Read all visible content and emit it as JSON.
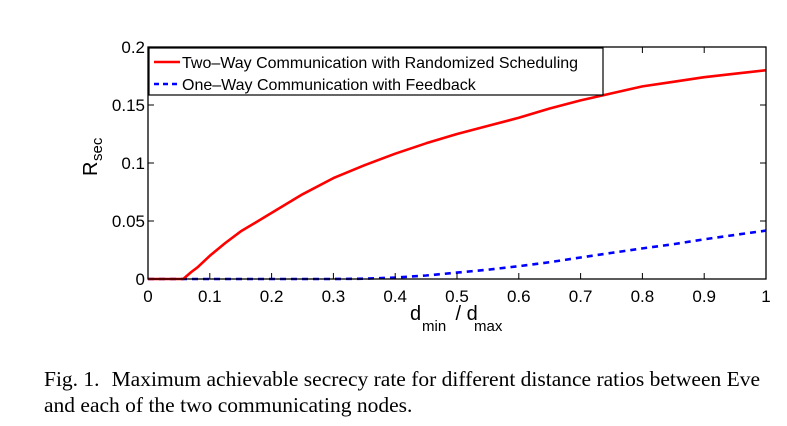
{
  "chart_data": {
    "type": "line",
    "title": "",
    "xlabel": {
      "main": "d",
      "sub1": "min",
      "sep": " / d",
      "sub2": "max"
    },
    "ylabel": {
      "main": "R",
      "sub": "sec"
    },
    "xlim": [
      0,
      1
    ],
    "ylim": [
      0,
      0.2
    ],
    "xticks": [
      0,
      0.1,
      0.2,
      0.3,
      0.4,
      0.5,
      0.6,
      0.7,
      0.8,
      0.9,
      1
    ],
    "xtick_labels": [
      "0",
      "0.1",
      "0.2",
      "0.3",
      "0.4",
      "0.5",
      "0.6",
      "0.7",
      "0.8",
      "0.9",
      "1"
    ],
    "yticks": [
      0,
      0.05,
      0.1,
      0.15,
      0.2
    ],
    "ytick_labels": [
      "0",
      "0.05",
      "0.1",
      "0.15",
      "0.2"
    ],
    "grid": false,
    "legend_position": "top-left",
    "series": [
      {
        "name": "Two–Way Communication with Randomized Scheduling",
        "color": "#ff0000",
        "style": "solid",
        "x": [
          0,
          0.03,
          0.057,
          0.07,
          0.08,
          0.1,
          0.125,
          0.15,
          0.175,
          0.2,
          0.25,
          0.3,
          0.35,
          0.4,
          0.45,
          0.5,
          0.55,
          0.6,
          0.65,
          0.7,
          0.75,
          0.8,
          0.85,
          0.9,
          0.95,
          1.0
        ],
        "y": [
          0,
          0,
          0,
          0.006,
          0.01,
          0.02,
          0.031,
          0.041,
          0.049,
          0.057,
          0.073,
          0.087,
          0.098,
          0.108,
          0.117,
          0.125,
          0.132,
          0.139,
          0.147,
          0.154,
          0.16,
          0.166,
          0.17,
          0.174,
          0.177,
          0.18
        ]
      },
      {
        "name": "One–Way Communication with Feedback",
        "color": "#0000ff",
        "style": "dashed",
        "x": [
          0,
          0.1,
          0.2,
          0.3,
          0.35,
          0.4,
          0.45,
          0.5,
          0.55,
          0.6,
          0.65,
          0.7,
          0.75,
          0.8,
          0.85,
          0.9,
          0.95,
          1.0
        ],
        "y": [
          0,
          0,
          0,
          0,
          0.0003,
          0.0012,
          0.003,
          0.0055,
          0.008,
          0.011,
          0.0145,
          0.0185,
          0.0225,
          0.0264,
          0.03,
          0.0342,
          0.038,
          0.0417
        ]
      }
    ]
  },
  "caption": {
    "label": "Fig. 1.",
    "text": "Maximum achievable secrecy rate for different distance ratios between Eve and each of the two communicating nodes."
  }
}
